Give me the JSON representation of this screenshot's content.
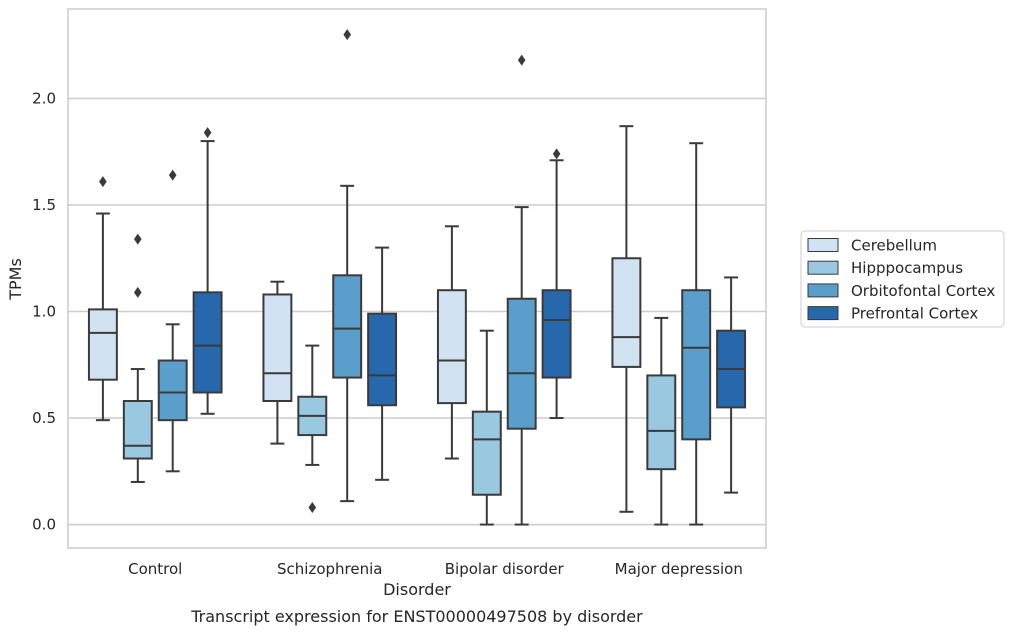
{
  "caption": "Transcript expression for ENST00000497508 by disorder",
  "chart_data": {
    "type": "box",
    "title": "",
    "xlabel": "Disorder",
    "ylabel": "TPMs",
    "ylim": [
      -0.11,
      2.42
    ],
    "yticks": [
      0.0,
      0.5,
      1.0,
      1.5,
      2.0
    ],
    "ytick_labels": [
      "0.0",
      "0.5",
      "1.0",
      "1.5",
      "2.0"
    ],
    "grid": "horizontal",
    "legend_position": "right-outside",
    "categories": [
      "Control",
      "Schizophrenia",
      "Bipolar disorder",
      "Major depression"
    ],
    "series": [
      {
        "name": "Cerebellum",
        "color": "#d1e2f2",
        "boxes": [
          {
            "whislo": 0.49,
            "q1": 0.68,
            "med": 0.9,
            "q3": 1.01,
            "whishi": 1.46,
            "fliers": [
              1.61
            ]
          },
          {
            "whislo": 0.38,
            "q1": 0.58,
            "med": 0.71,
            "q3": 1.08,
            "whishi": 1.14,
            "fliers": []
          },
          {
            "whislo": 0.31,
            "q1": 0.57,
            "med": 0.77,
            "q3": 1.1,
            "whishi": 1.4,
            "fliers": []
          },
          {
            "whislo": 0.06,
            "q1": 0.74,
            "med": 0.88,
            "q3": 1.25,
            "whishi": 1.87,
            "fliers": []
          }
        ]
      },
      {
        "name": "Hipppocampus",
        "color": "#9ac8e0",
        "boxes": [
          {
            "whislo": 0.2,
            "q1": 0.31,
            "med": 0.37,
            "q3": 0.58,
            "whishi": 0.73,
            "fliers": [
              1.09,
              1.34
            ]
          },
          {
            "whislo": 0.28,
            "q1": 0.42,
            "med": 0.51,
            "q3": 0.6,
            "whishi": 0.84,
            "fliers": [
              0.08
            ]
          },
          {
            "whislo": 0.0,
            "q1": 0.14,
            "med": 0.4,
            "q3": 0.53,
            "whishi": 0.91,
            "fliers": []
          },
          {
            "whislo": 0.0,
            "q1": 0.26,
            "med": 0.44,
            "q3": 0.7,
            "whishi": 0.97,
            "fliers": []
          }
        ]
      },
      {
        "name": "Orbitofontal Cortex",
        "color": "#5a9ecc",
        "boxes": [
          {
            "whislo": 0.25,
            "q1": 0.49,
            "med": 0.62,
            "q3": 0.77,
            "whishi": 0.94,
            "fliers": [
              1.64
            ]
          },
          {
            "whislo": 0.11,
            "q1": 0.69,
            "med": 0.92,
            "q3": 1.17,
            "whishi": 1.59,
            "fliers": [
              2.3
            ]
          },
          {
            "whislo": 0.0,
            "q1": 0.45,
            "med": 0.71,
            "q3": 1.06,
            "whishi": 1.49,
            "fliers": [
              2.18
            ]
          },
          {
            "whislo": 0.0,
            "q1": 0.4,
            "med": 0.83,
            "q3": 1.1,
            "whishi": 1.79,
            "fliers": []
          }
        ]
      },
      {
        "name": "Prefrontal Cortex",
        "color": "#2767ab",
        "boxes": [
          {
            "whislo": 0.52,
            "q1": 0.62,
            "med": 0.84,
            "q3": 1.09,
            "whishi": 1.8,
            "fliers": [
              1.84
            ]
          },
          {
            "whislo": 0.21,
            "q1": 0.56,
            "med": 0.7,
            "q3": 0.99,
            "whishi": 1.3,
            "fliers": []
          },
          {
            "whislo": 0.5,
            "q1": 0.69,
            "med": 0.96,
            "q3": 1.1,
            "whishi": 1.71,
            "fliers": [
              1.74
            ]
          },
          {
            "whislo": 0.15,
            "q1": 0.55,
            "med": 0.73,
            "q3": 0.91,
            "whishi": 1.16,
            "fliers": []
          }
        ]
      }
    ]
  }
}
